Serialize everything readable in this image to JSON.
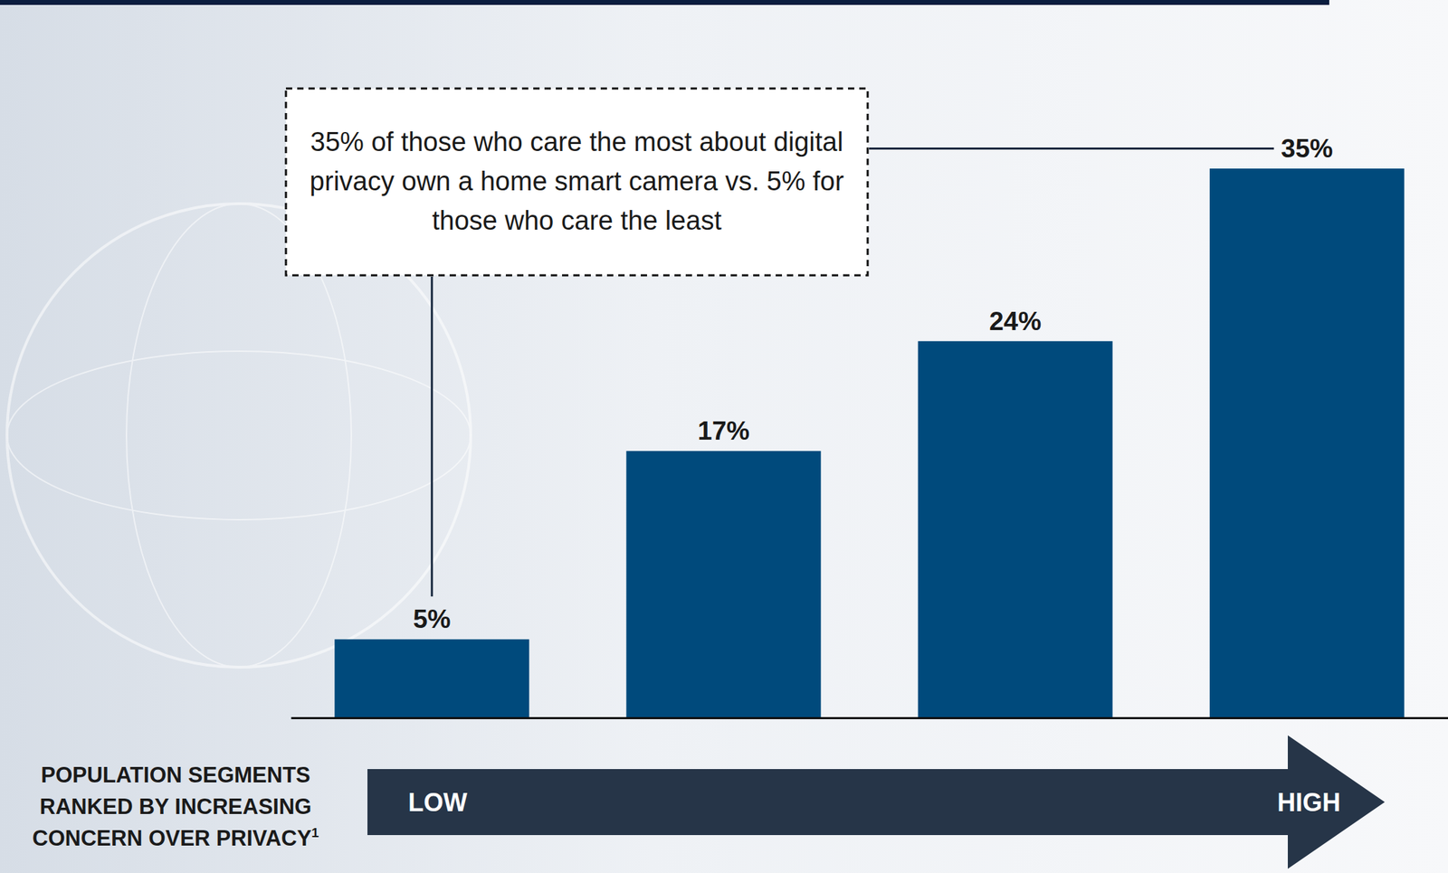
{
  "chart_data": {
    "type": "bar",
    "categories": [
      null,
      null,
      null,
      null
    ],
    "values": [
      5,
      17,
      24,
      35
    ],
    "value_labels": [
      "5%",
      "17%",
      "24%",
      "35%"
    ],
    "color": "#004a7c",
    "ylim": [
      0,
      35
    ],
    "tick_labels": false,
    "data_labels": true,
    "annotation": "35% of those who care the most about digital privacy own a home smart camera vs. 5% for those who care the least",
    "xlabel": "POPULATION SEGMENTS RANKED BY INCREASING CONCERN OVER PRIVACY",
    "xlabel_footnote": "1",
    "scale_labels": [
      "LOW",
      "HIGH"
    ]
  }
}
